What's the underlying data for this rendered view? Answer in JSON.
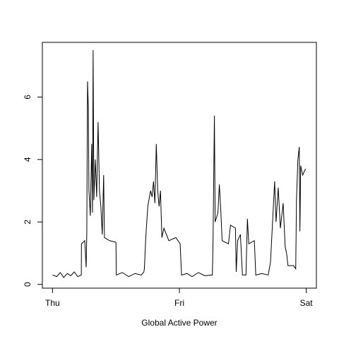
{
  "chart_data": {
    "type": "line",
    "x_label": "Global Active Power",
    "x": [
      0,
      0.033,
      0.061,
      0.088,
      0.116,
      0.144,
      0.171,
      0.199,
      0.227,
      0.228,
      0.254,
      0.265,
      0.27,
      0.276,
      0.282,
      0.287,
      0.298,
      0.309,
      0.315,
      0.32,
      0.326,
      0.337,
      0.348,
      0.359,
      0.37,
      0.381,
      0.392,
      0.403,
      0.409,
      0.45,
      0.5,
      0.503,
      0.55,
      0.6,
      0.65,
      0.7,
      0.72,
      0.724,
      0.735,
      0.751,
      0.773,
      0.785,
      0.796,
      0.807,
      0.818,
      0.829,
      0.84,
      0.851,
      0.862,
      0.878,
      0.917,
      0.972,
      1.006,
      1.017,
      1.06,
      1.1,
      1.15,
      1.2,
      1.26,
      1.265,
      1.276,
      1.282,
      1.304,
      1.315,
      1.326,
      1.337,
      1.387,
      1.403,
      1.442,
      1.448,
      1.459,
      1.481,
      1.497,
      1.525,
      1.536,
      1.547,
      1.591,
      1.602,
      1.65,
      1.7,
      1.718,
      1.751,
      1.762,
      1.779,
      1.796,
      1.818,
      1.834,
      1.845,
      1.856,
      1.9,
      1.917,
      1.923,
      1.934,
      1.945,
      1.95,
      1.956,
      1.972,
      1.994
    ],
    "series": [
      {
        "name": "Global Active Power",
        "color": "#000000",
        "values": [
          0.3,
          0.25,
          0.38,
          0.22,
          0.35,
          0.28,
          0.4,
          0.25,
          0.3,
          1.3,
          1.4,
          0.55,
          1.6,
          6.5,
          5.7,
          3.0,
          2.2,
          4.5,
          2.3,
          7.5,
          2.7,
          4.0,
          2.8,
          5.2,
          3.0,
          2.5,
          1.6,
          3.5,
          1.5,
          1.4,
          1.35,
          0.3,
          0.38,
          0.25,
          0.35,
          0.3,
          0.4,
          0.5,
          1.5,
          2.5,
          3.0,
          2.8,
          3.3,
          2.6,
          4.5,
          3.0,
          2.5,
          3.0,
          1.5,
          1.8,
          1.4,
          1.5,
          1.3,
          0.3,
          0.35,
          0.25,
          0.38,
          0.28,
          0.3,
          1.3,
          5.4,
          2.0,
          2.3,
          3.2,
          2.4,
          1.4,
          1.3,
          1.9,
          1.8,
          0.4,
          1.4,
          1.6,
          0.3,
          0.3,
          2.1,
          1.3,
          1.4,
          0.3,
          0.35,
          0.3,
          0.7,
          3.3,
          2.0,
          3.1,
          1.8,
          2.6,
          1.2,
          1.0,
          0.6,
          0.6,
          0.5,
          2.7,
          4.0,
          4.4,
          1.7,
          3.8,
          3.5,
          3.7
        ]
      }
    ],
    "xlim": [
      -0.08,
      2.08
    ],
    "xticks": [
      {
        "value": 0,
        "label": "Thu"
      },
      {
        "value": 1,
        "label": "Fri"
      },
      {
        "value": 2,
        "label": "Sat"
      }
    ],
    "ylim": [
      -0.12,
      7.75
    ],
    "yticks": [
      0,
      2,
      4,
      6
    ]
  }
}
